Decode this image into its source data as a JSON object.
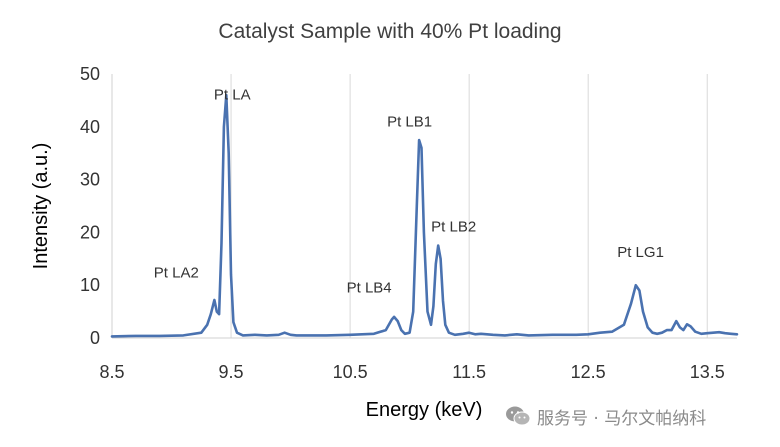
{
  "chart_data": {
    "type": "line",
    "title": "Catalyst Sample with 40% Pt loading",
    "xlabel": "Energy (keV)",
    "ylabel": "Intensity (a.u.)",
    "xlim": [
      8.5,
      13.75
    ],
    "ylim": [
      0,
      50
    ],
    "xticks": [
      "8.5",
      "9.5",
      "10.5",
      "11.5",
      "12.5",
      "13.5"
    ],
    "yticks": [
      "0",
      "10",
      "20",
      "30",
      "40",
      "50"
    ],
    "grid": "vertical",
    "series": [
      {
        "color": "#4a72b0",
        "x": [
          8.5,
          8.7,
          8.9,
          9.1,
          9.25,
          9.3,
          9.33,
          9.36,
          9.38,
          9.4,
          9.42,
          9.44,
          9.46,
          9.48,
          9.5,
          9.52,
          9.55,
          9.6,
          9.7,
          9.8,
          9.9,
          9.95,
          10.0,
          10.05,
          10.1,
          10.3,
          10.5,
          10.7,
          10.8,
          10.85,
          10.87,
          10.9,
          10.93,
          10.96,
          11.0,
          11.03,
          11.06,
          11.08,
          11.1,
          11.12,
          11.15,
          11.18,
          11.2,
          11.22,
          11.24,
          11.26,
          11.28,
          11.3,
          11.33,
          11.38,
          11.45,
          11.5,
          11.55,
          11.6,
          11.7,
          11.8,
          11.9,
          12.0,
          12.2,
          12.4,
          12.5,
          12.6,
          12.7,
          12.8,
          12.86,
          12.9,
          12.93,
          12.96,
          13.0,
          13.04,
          13.08,
          13.12,
          13.16,
          13.2,
          13.24,
          13.27,
          13.3,
          13.33,
          13.36,
          13.4,
          13.45,
          13.5,
          13.55,
          13.6,
          13.65,
          13.7,
          13.75
        ],
        "y": [
          0.3,
          0.4,
          0.4,
          0.5,
          1.0,
          2.5,
          4.5,
          7.2,
          5.0,
          4.5,
          18.0,
          40.0,
          46.0,
          35.0,
          12.0,
          3.0,
          1.0,
          0.5,
          0.6,
          0.5,
          0.6,
          1.0,
          0.6,
          0.5,
          0.5,
          0.5,
          0.6,
          0.8,
          1.5,
          3.5,
          4.0,
          3.2,
          1.5,
          0.8,
          1.0,
          5.0,
          25.0,
          37.5,
          36.0,
          20.0,
          5.0,
          2.5,
          6.0,
          14.0,
          17.5,
          15.0,
          7.0,
          2.5,
          1.0,
          0.6,
          0.8,
          1.0,
          0.7,
          0.8,
          0.6,
          0.5,
          0.7,
          0.5,
          0.6,
          0.6,
          0.7,
          1.0,
          1.2,
          2.5,
          6.5,
          10.0,
          9.0,
          5.0,
          2.0,
          1.0,
          0.8,
          1.0,
          1.5,
          1.5,
          3.2,
          2.0,
          1.5,
          2.6,
          2.2,
          1.2,
          0.8,
          0.9,
          1.0,
          1.1,
          0.9,
          0.8,
          0.7
        ]
      }
    ],
    "annotations": [
      {
        "text": "Pt LA2",
        "x": 9.04,
        "y": 11.5
      },
      {
        "text": "Pt LA",
        "x": 9.51,
        "y": 45.2
      },
      {
        "text": "Pt LB4",
        "x": 10.66,
        "y": 8.6
      },
      {
        "text": "Pt LB1",
        "x": 11.0,
        "y": 40.1
      },
      {
        "text": "Pt LB2",
        "x": 11.37,
        "y": 20.2
      },
      {
        "text": "Pt LG1",
        "x": 12.94,
        "y": 15.3
      }
    ]
  },
  "watermark": {
    "text": "服务号 · 马尔文帕纳科",
    "icon": "wechat-icon"
  }
}
